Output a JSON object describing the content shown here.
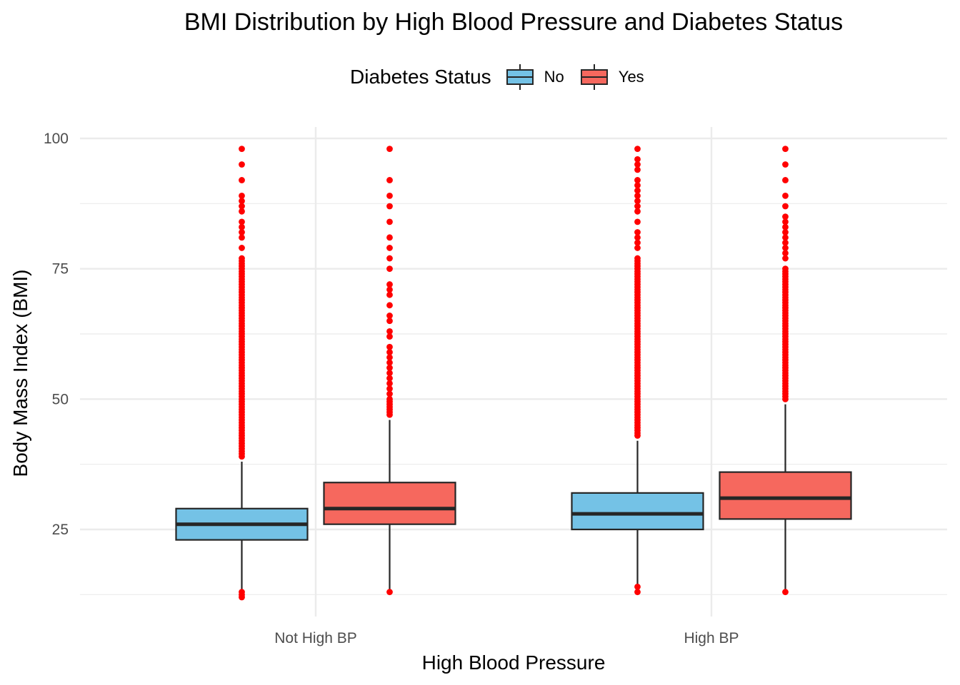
{
  "chart_data": {
    "type": "boxplot",
    "title": "BMI Distribution by High Blood Pressure and Diabetes Status",
    "xlabel": "High Blood Pressure",
    "ylabel": "Body Mass Index (BMI)",
    "categories": [
      "Not High BP",
      "High BP"
    ],
    "y_ticks": [
      25,
      50,
      75,
      100
    ],
    "ylim": [
      12,
      102
    ],
    "grid": true,
    "legend": {
      "title": "Diabetes Status",
      "placement": "top",
      "entries": [
        {
          "label": "No",
          "color": "#74C2E6"
        },
        {
          "label": "Yes",
          "color": "#F6685E"
        }
      ]
    },
    "outlier_color": "#FF0000",
    "box_stroke_color": "#262626",
    "series": [
      {
        "name": "No",
        "color": "#74C2E6",
        "boxes": [
          {
            "category": "Not High BP",
            "whisker_low": 13,
            "q1": 23,
            "median": 26,
            "q3": 29,
            "whisker_high": 38,
            "outliers": [
              12,
              12.5,
              13,
              39,
              39.5,
              40,
              40.5,
              41,
              41.5,
              42,
              42.5,
              43,
              43.5,
              44,
              44.5,
              45,
              45.5,
              46,
              46.5,
              47,
              47.5,
              48,
              48.5,
              49,
              49.5,
              50,
              50.5,
              51,
              51.5,
              52,
              52.5,
              53,
              53.5,
              54,
              54.5,
              55,
              55.5,
              56,
              56.5,
              57,
              57.5,
              58,
              58.5,
              59,
              59.5,
              60,
              60.5,
              61,
              61.5,
              62,
              62.5,
              63,
              63.5,
              64,
              64.5,
              65,
              65.5,
              66,
              66.5,
              67,
              67.5,
              68,
              68.5,
              69,
              69.5,
              70,
              70.5,
              71,
              71.5,
              72,
              72.5,
              73,
              73.5,
              74,
              74.5,
              75,
              75.5,
              76,
              76.5,
              77,
              79,
              81,
              82,
              83,
              84,
              86,
              87,
              88,
              89,
              92,
              95,
              98
            ]
          },
          {
            "category": "High BP",
            "whisker_low": 14,
            "q1": 25,
            "median": 28,
            "q3": 32,
            "whisker_high": 42,
            "outliers": [
              13,
              14,
              43,
              43.5,
              44,
              44.5,
              45,
              45.5,
              46,
              46.5,
              47,
              47.5,
              48,
              48.5,
              49,
              49.5,
              50,
              50.5,
              51,
              51.5,
              52,
              52.5,
              53,
              53.5,
              54,
              54.5,
              55,
              55.5,
              56,
              56.5,
              57,
              57.5,
              58,
              58.5,
              59,
              59.5,
              60,
              60.5,
              61,
              61.5,
              62,
              62.5,
              63,
              63.5,
              64,
              64.5,
              65,
              65.5,
              66,
              66.5,
              67,
              67.5,
              68,
              68.5,
              69,
              69.5,
              70,
              70.5,
              71,
              71.5,
              72,
              72.5,
              73,
              73.5,
              74,
              74.5,
              75,
              75.5,
              76,
              76.5,
              77,
              79,
              80,
              81,
              82,
              84,
              86,
              87,
              88,
              89,
              90,
              91,
              92,
              94,
              95,
              96,
              98
            ]
          }
        ]
      },
      {
        "name": "Yes",
        "color": "#F6685E",
        "boxes": [
          {
            "category": "Not High BP",
            "whisker_low": 13,
            "q1": 26,
            "median": 29,
            "q3": 34,
            "whisker_high": 46,
            "outliers": [
              13,
              47,
              47.5,
              48,
              48.5,
              49,
              49.5,
              50,
              51,
              52,
              53,
              54,
              55,
              56,
              57,
              58,
              59,
              60,
              62,
              63,
              65,
              66,
              68,
              70,
              71,
              72,
              75,
              77,
              79,
              81,
              84,
              87,
              89,
              92,
              98
            ]
          },
          {
            "category": "High BP",
            "whisker_low": 13,
            "q1": 27,
            "median": 31,
            "q3": 36,
            "whisker_high": 49,
            "outliers": [
              13,
              50,
              50.5,
              51,
              51.5,
              52,
              52.5,
              53,
              53.5,
              54,
              54.5,
              55,
              55.5,
              56,
              56.5,
              57,
              57.5,
              58,
              58.5,
              59,
              59.5,
              60,
              60.5,
              61,
              61.5,
              62,
              62.5,
              63,
              63.5,
              64,
              64.5,
              65,
              65.5,
              66,
              66.5,
              67,
              67.5,
              68,
              68.5,
              69,
              69.5,
              70,
              70.5,
              71,
              71.5,
              72,
              72.5,
              73,
              73.5,
              74,
              74.5,
              75,
              77,
              78,
              79,
              80,
              81,
              82,
              83,
              84,
              85,
              87,
              89,
              92,
              95,
              98
            ]
          }
        ]
      }
    ]
  }
}
